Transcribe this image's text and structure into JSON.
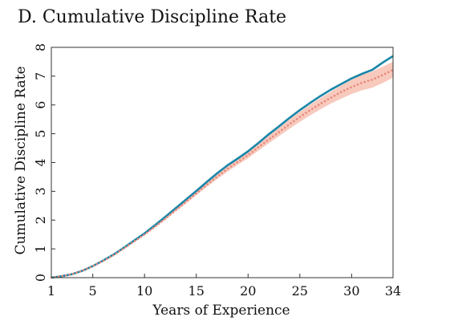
{
  "chart_data": {
    "type": "line",
    "title": "D. Cumulative Discipline Rate",
    "xlabel": "Years of Experience",
    "ylabel": "Cumulative Discipline Rate",
    "xlim": [
      1,
      34
    ],
    "ylim": [
      0,
      8
    ],
    "x_ticks": [
      1,
      5,
      10,
      15,
      20,
      25,
      30,
      34
    ],
    "y_ticks": [
      0,
      1,
      2,
      3,
      4,
      5,
      6,
      7,
      8
    ],
    "grid": false,
    "legend": "none",
    "x": [
      1,
      2,
      3,
      4,
      5,
      6,
      7,
      8,
      9,
      10,
      11,
      12,
      13,
      14,
      15,
      16,
      17,
      18,
      19,
      20,
      21,
      22,
      23,
      24,
      25,
      26,
      27,
      28,
      29,
      30,
      31,
      32,
      33,
      34
    ],
    "series": [
      {
        "style": "solid",
        "color": "#1a86a8",
        "values": [
          0.0,
          0.05,
          0.12,
          0.24,
          0.4,
          0.59,
          0.8,
          1.04,
          1.29,
          1.54,
          1.82,
          2.11,
          2.41,
          2.71,
          3.01,
          3.32,
          3.62,
          3.9,
          4.14,
          4.39,
          4.68,
          4.98,
          5.26,
          5.55,
          5.82,
          6.07,
          6.31,
          6.53,
          6.73,
          6.92,
          7.08,
          7.22,
          7.47,
          7.7
        ]
      },
      {
        "style": "dotted",
        "color": "#e8897a",
        "band_color": "#f8c9bd",
        "values": [
          0.0,
          0.05,
          0.12,
          0.24,
          0.4,
          0.58,
          0.78,
          1.02,
          1.26,
          1.5,
          1.77,
          2.05,
          2.34,
          2.63,
          2.93,
          3.22,
          3.5,
          3.78,
          4.02,
          4.26,
          4.53,
          4.8,
          5.06,
          5.33,
          5.58,
          5.82,
          6.04,
          6.25,
          6.45,
          6.62,
          6.77,
          6.88,
          7.04,
          7.22
        ],
        "band_lower": [
          0.0,
          0.04,
          0.11,
          0.23,
          0.38,
          0.56,
          0.76,
          0.99,
          1.23,
          1.47,
          1.73,
          2.0,
          2.29,
          2.57,
          2.86,
          3.15,
          3.42,
          3.68,
          3.92,
          4.15,
          4.41,
          4.67,
          4.92,
          5.17,
          5.41,
          5.64,
          5.85,
          6.05,
          6.22,
          6.38,
          6.51,
          6.6,
          6.76,
          6.95
        ],
        "band_upper": [
          0.0,
          0.06,
          0.13,
          0.25,
          0.42,
          0.6,
          0.8,
          1.05,
          1.29,
          1.54,
          1.81,
          2.1,
          2.4,
          2.7,
          3.0,
          3.3,
          3.59,
          3.88,
          4.13,
          4.38,
          4.66,
          4.94,
          5.21,
          5.5,
          5.76,
          6.01,
          6.24,
          6.46,
          6.68,
          6.87,
          7.04,
          7.16,
          7.33,
          7.5
        ]
      }
    ]
  }
}
